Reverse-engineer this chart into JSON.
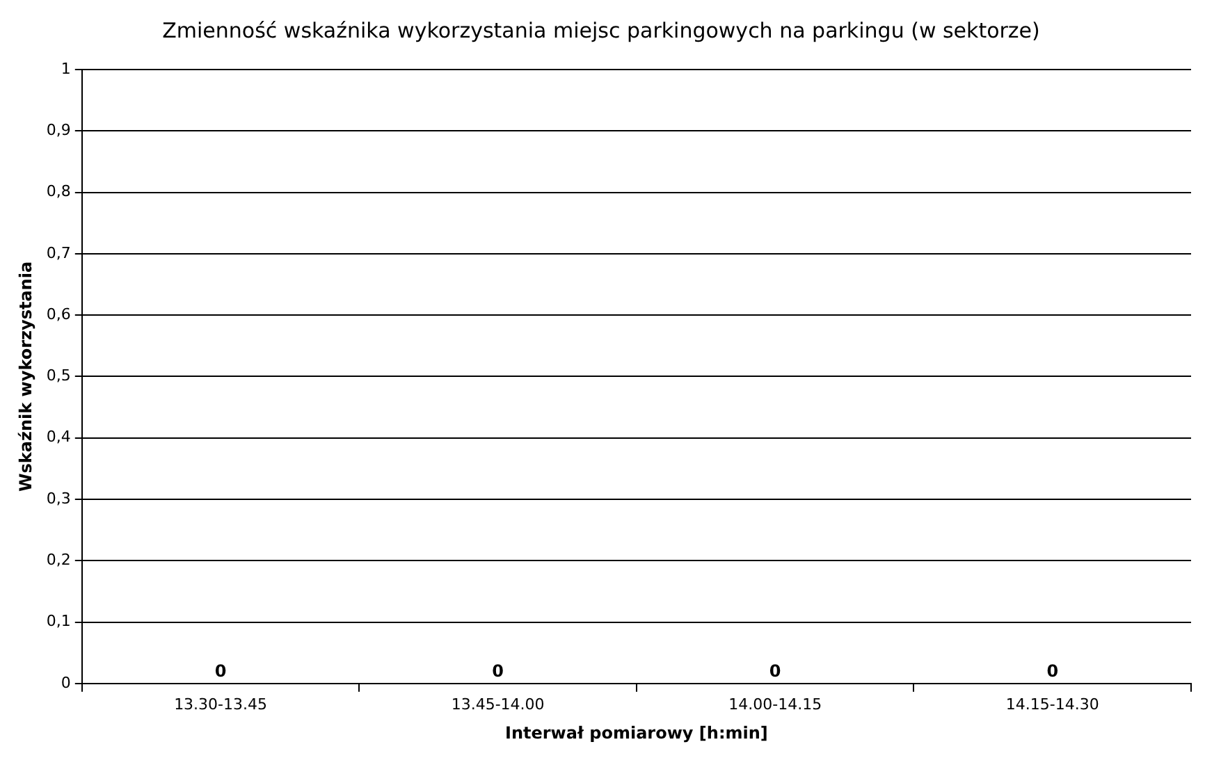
{
  "chart_data": {
    "type": "bar",
    "title": "Zmienność wskaźnika wykorzystania miejsc parkingowych na parkingu (w sektorze)",
    "xlabel": "Interwał pomiarowy [h:min]",
    "ylabel": "Wskaźnik wykorzystania",
    "categories": [
      "13.30-13.45",
      "13.45-14.00",
      "14.00-14.15",
      "14.15-14.30"
    ],
    "values": [
      0,
      0,
      0,
      0
    ],
    "data_labels": true,
    "ylim": [
      0,
      1
    ],
    "yticks": [
      {
        "value": 0,
        "label": "0"
      },
      {
        "value": 0.1,
        "label": "0,1"
      },
      {
        "value": 0.2,
        "label": "0,2"
      },
      {
        "value": 0.3,
        "label": "0,3"
      },
      {
        "value": 0.4,
        "label": "0,4"
      },
      {
        "value": 0.5,
        "label": "0,5"
      },
      {
        "value": 0.6,
        "label": "0,6"
      },
      {
        "value": 0.7,
        "label": "0,7"
      },
      {
        "value": 0.8,
        "label": "0,8"
      },
      {
        "value": 0.9,
        "label": "0,9"
      },
      {
        "value": 1,
        "label": "1"
      }
    ],
    "grid": "y",
    "legend": false
  }
}
